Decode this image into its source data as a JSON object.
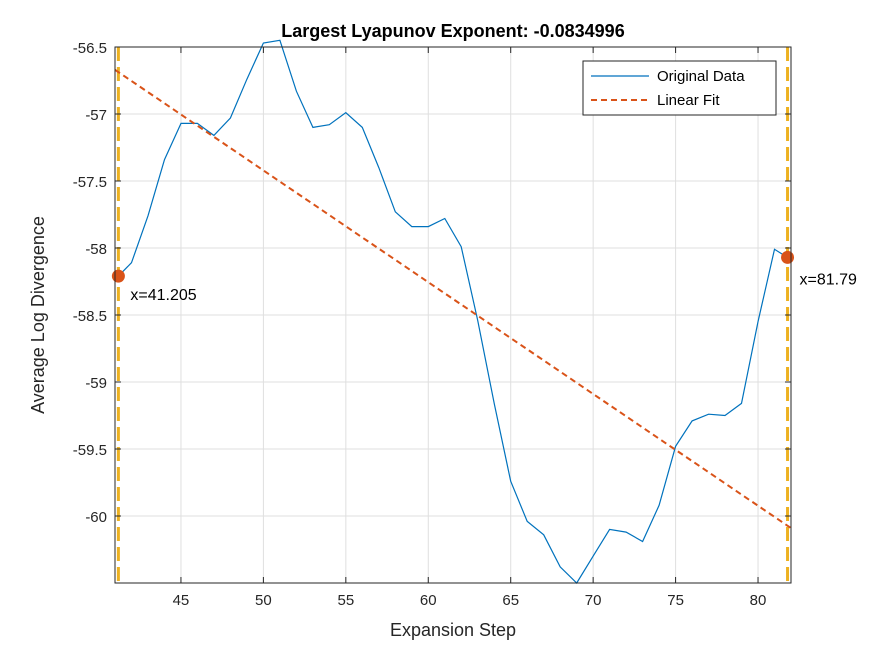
{
  "chart_data": {
    "type": "line",
    "title": "Largest Lyapunov Exponent: -0.0834996",
    "xlabel": "Expansion Step",
    "ylabel": "Average Log Divergence",
    "xlim": [
      41,
      82
    ],
    "ylim": [
      -60.5,
      -56.5
    ],
    "xticks": [
      45,
      50,
      55,
      60,
      65,
      70,
      75,
      80
    ],
    "yticks": [
      -56.5,
      -57,
      -57.5,
      -58,
      -58.5,
      -59,
      -59.5,
      -60
    ],
    "ytick_labels": [
      "-56.5",
      "-57",
      "-57.5",
      "-58",
      "-58.5",
      "-59",
      "-59.5",
      "-60"
    ],
    "grid": true,
    "legend_position": "top-right",
    "series": [
      {
        "name": "Original Data",
        "style": "solid",
        "color": "#0072BD",
        "x": [
          41.205,
          42,
          43,
          44,
          45,
          46,
          47,
          48,
          49,
          50,
          51,
          52,
          53,
          54,
          55,
          56,
          57,
          58,
          59,
          60,
          61,
          62,
          63,
          64,
          65,
          66,
          67,
          68,
          69,
          70,
          71,
          72,
          73,
          74,
          75,
          76,
          77,
          78,
          79,
          80,
          81,
          81.79
        ],
        "y": [
          -58.21,
          -58.11,
          -57.76,
          -57.34,
          -57.07,
          -57.07,
          -57.16,
          -57.03,
          -56.74,
          -56.47,
          -56.45,
          -56.83,
          -57.1,
          -57.08,
          -56.99,
          -57.1,
          -57.4,
          -57.73,
          -57.84,
          -57.84,
          -57.78,
          -57.99,
          -58.54,
          -59.16,
          -59.74,
          -60.04,
          -60.14,
          -60.38,
          -60.5,
          -60.3,
          -60.1,
          -60.12,
          -60.19,
          -59.92,
          -59.48,
          -59.29,
          -59.24,
          -59.25,
          -59.16,
          -58.55,
          -58.01,
          -58.07
        ]
      },
      {
        "name": "Linear Fit",
        "style": "dashed",
        "color": "#D95319",
        "x": [
          41,
          82
        ],
        "y": [
          -56.67,
          -60.09
        ]
      }
    ],
    "markers": [
      {
        "x": 41.205,
        "y": -58.21,
        "label": "x=41.205"
      },
      {
        "x": 81.79,
        "y": -58.07,
        "label": "x=81.79"
      }
    ],
    "vertical_lines": [
      41.205,
      81.79
    ],
    "colors": {
      "marker": "#D95319",
      "vline": "#EDB120",
      "grid": "#dfdfdf",
      "axis": "#262626"
    }
  }
}
